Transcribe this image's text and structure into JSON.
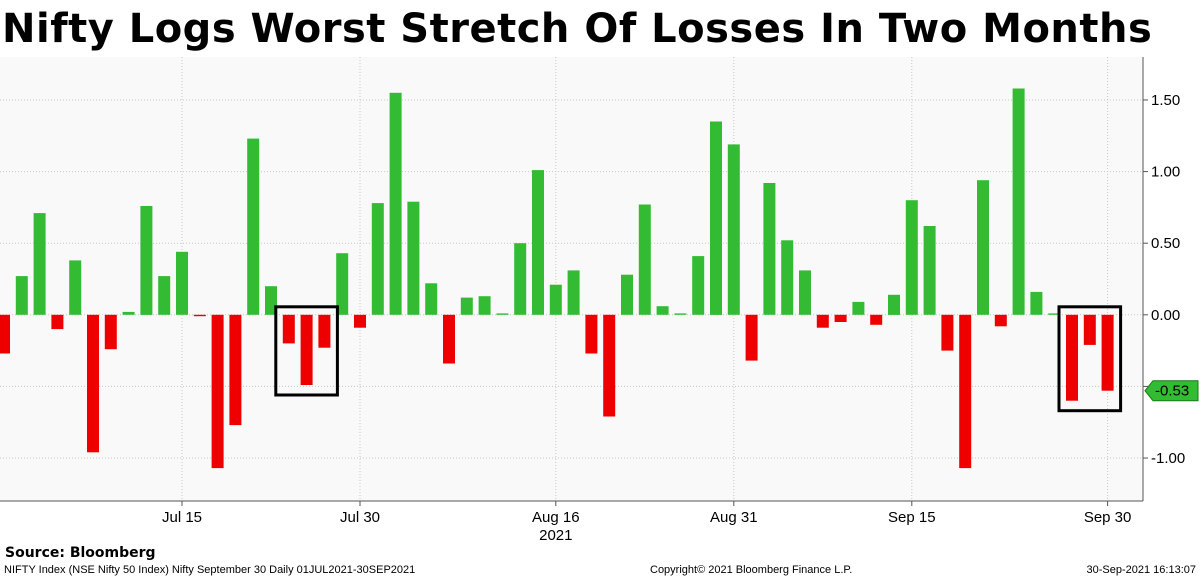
{
  "title": "Nifty Logs Worst Stretch Of Losses In Two Months",
  "source": "Source: Bloomberg",
  "footer": {
    "left": "NIFTY Index (NSE Nifty 50 Index) Nifty September 30  Daily 01JUL2021-30SEP2021",
    "center": "Copyright© 2021 Bloomberg Finance L.P.",
    "right": "30-Sep-2021 16:13:07"
  },
  "colors": {
    "positive": "#33bb33",
    "negative": "#ee0000",
    "last_value_tag": "#33bb33",
    "plot_background": "#f9f9f9",
    "grid": "#c8c8c8"
  },
  "chart_data": {
    "type": "bar",
    "title": "Nifty Logs Worst Stretch Of Losses In Two Months",
    "xlabel": "2021",
    "ylabel": "",
    "y_axis_position": "right",
    "ylim": [
      -1.3,
      1.8
    ],
    "y_ticks": [
      1.5,
      1.0,
      0.5,
      0.0,
      -0.5,
      -1.0
    ],
    "y_tick_labels": [
      "1.50",
      "1.00",
      "0.50",
      "0.00",
      "",
      "-1.00"
    ],
    "x_tick_labels": [
      "Jul 15",
      "Jul 30",
      "Aug 16",
      "Aug 31",
      "Sep 15",
      "Sep 30"
    ],
    "x_ticks_at_category": [
      "2021-07-15",
      "2021-07-30",
      "2021-08-16",
      "2021-08-31",
      "2021-09-15",
      "2021-09-30"
    ],
    "x_year_label": "2021",
    "grid": true,
    "last_value_label": "-0.53",
    "categories": [
      "2021-07-01",
      "2021-07-02",
      "2021-07-05",
      "2021-07-06",
      "2021-07-07",
      "2021-07-08",
      "2021-07-09",
      "2021-07-12",
      "2021-07-13",
      "2021-07-14",
      "2021-07-15",
      "2021-07-16",
      "2021-07-19",
      "2021-07-20",
      "2021-07-22",
      "2021-07-23",
      "2021-07-26",
      "2021-07-27",
      "2021-07-28",
      "2021-07-29",
      "2021-07-30",
      "2021-08-02",
      "2021-08-03",
      "2021-08-04",
      "2021-08-05",
      "2021-08-06",
      "2021-08-09",
      "2021-08-10",
      "2021-08-11",
      "2021-08-12",
      "2021-08-13",
      "2021-08-16",
      "2021-08-17",
      "2021-08-18",
      "2021-08-20",
      "2021-08-23",
      "2021-08-24",
      "2021-08-25",
      "2021-08-26",
      "2021-08-27",
      "2021-08-30",
      "2021-08-31",
      "2021-09-01",
      "2021-09-02",
      "2021-09-03",
      "2021-09-06",
      "2021-09-07",
      "2021-09-08",
      "2021-09-09",
      "2021-09-13",
      "2021-09-14",
      "2021-09-15",
      "2021-09-16",
      "2021-09-17",
      "2021-09-20",
      "2021-09-21",
      "2021-09-22",
      "2021-09-23",
      "2021-09-24",
      "2021-09-27",
      "2021-09-28",
      "2021-09-29",
      "2021-09-30"
    ],
    "values": [
      -0.27,
      0.27,
      0.71,
      -0.1,
      0.38,
      -0.96,
      -0.24,
      0.02,
      0.76,
      0.27,
      0.44,
      -0.01,
      -1.07,
      -0.77,
      1.23,
      0.2,
      -0.2,
      -0.49,
      -0.23,
      0.43,
      -0.09,
      0.78,
      1.55,
      0.79,
      0.22,
      -0.34,
      0.12,
      0.13,
      0.01,
      0.5,
      1.01,
      0.21,
      0.31,
      -0.27,
      -0.71,
      0.28,
      0.77,
      0.06,
      0.01,
      0.41,
      1.35,
      1.19,
      -0.32,
      0.92,
      0.52,
      0.31,
      -0.09,
      -0.05,
      0.09,
      -0.07,
      0.14,
      0.8,
      0.62,
      -0.25,
      -1.07,
      0.94,
      -0.08,
      1.58,
      0.16,
      0.01,
      -0.6,
      -0.21,
      -0.53
    ],
    "highlight_boxes": [
      {
        "from": "2021-07-26",
        "to": "2021-07-28"
      },
      {
        "from": "2021-09-28",
        "to": "2021-09-30"
      }
    ]
  }
}
